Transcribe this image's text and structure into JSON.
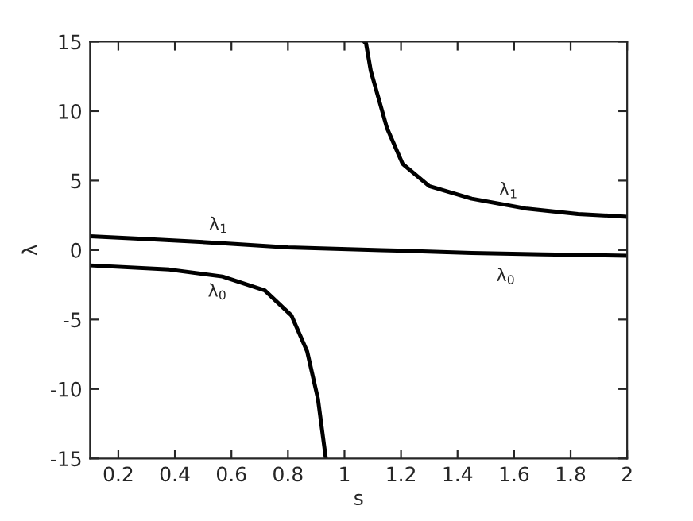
{
  "chart_data": {
    "type": "line",
    "xlabel": "s",
    "ylabel": "λ",
    "xlim": [
      0.1,
      2
    ],
    "ylim": [
      -15,
      15
    ],
    "xticks": [
      0.2,
      0.4,
      0.6,
      0.8,
      1,
      1.2,
      1.4,
      1.6,
      1.8,
      2
    ],
    "yticks": [
      -15,
      -10,
      -5,
      0,
      5,
      10,
      15
    ],
    "grid": false,
    "legend": false,
    "line_style": "solid",
    "marker": "none",
    "series": [
      {
        "color": "#000000",
        "x": [
          1.07,
          1.076,
          1.093,
          1.15,
          1.206,
          1.3,
          1.45,
          1.64,
          1.826,
          2
        ],
        "values": [
          15,
          14.9,
          12.9,
          8.8,
          6.2,
          4.6,
          3.7,
          3.0,
          2.6,
          2.4
        ]
      },
      {
        "color": "#000000",
        "x": [
          0.1,
          0.3,
          0.567,
          0.8,
          1.13,
          1.45,
          1.7,
          2
        ],
        "values": [
          1.0,
          0.8,
          0.5,
          0.2,
          0.0,
          -0.2,
          -0.3,
          -0.4
        ]
      },
      {
        "color": "#000000",
        "x": [
          0.1,
          0.38,
          0.568,
          0.718,
          0.812,
          0.868,
          0.906,
          0.934
        ],
        "values": [
          -1.1,
          -1.4,
          -1.9,
          -2.9,
          -4.7,
          -7.3,
          -10.7,
          -15
        ]
      }
    ],
    "annotations": [
      "λ$_{1}$",
      "λ$_{0}$",
      "λ$_{1}$",
      "λ$_{0}$"
    ]
  }
}
